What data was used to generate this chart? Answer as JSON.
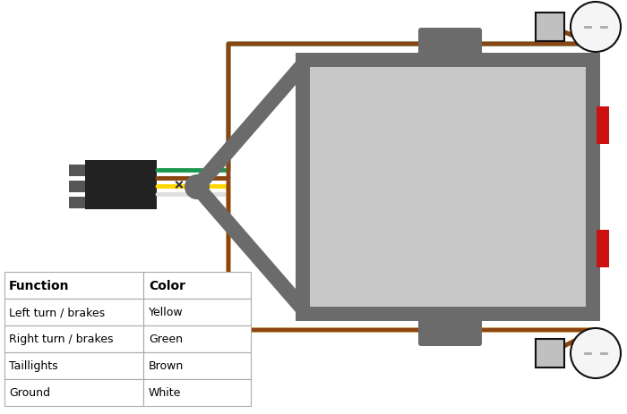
{
  "bg_color": "#ffffff",
  "trailer_frame_color": "#6b6b6b",
  "trailer_inner_color": "#c8c8c8",
  "connector_color": "#222222",
  "connector_ridge_color": "#555555",
  "green_wire": "#1a9850",
  "brown_wire": "#8B4513",
  "yellow_wire": "#FFD700",
  "white_wire": "#e0e0e0",
  "red_accent": "#cc1111",
  "light_base_color": "#c0c0c0",
  "light_bulb_fill": "#f5f5f5",
  "light_outline": "#111111",
  "table_border": "#aaaaaa",
  "title_font_size": 10,
  "body_font_size": 9,
  "wire_lw": 3.5,
  "table_data": [
    [
      "Function",
      "Color"
    ],
    [
      "Left turn / brakes",
      "Yellow"
    ],
    [
      "Right turn / brakes",
      "Green"
    ],
    [
      "Taillights",
      "Brown"
    ],
    [
      "Ground",
      "White"
    ]
  ]
}
